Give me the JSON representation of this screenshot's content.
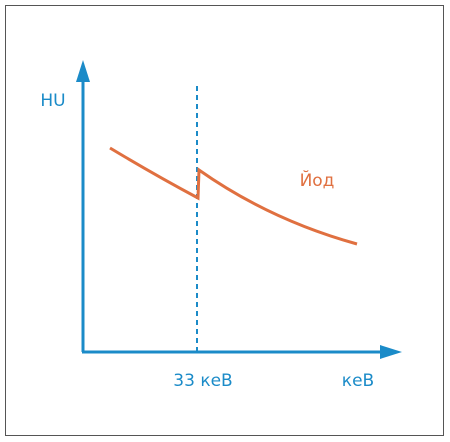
{
  "y_axis_label": "HU",
  "x_axis_label": "кеВ",
  "marker_label": "33 кеВ",
  "curve_label": "Йод"
}
